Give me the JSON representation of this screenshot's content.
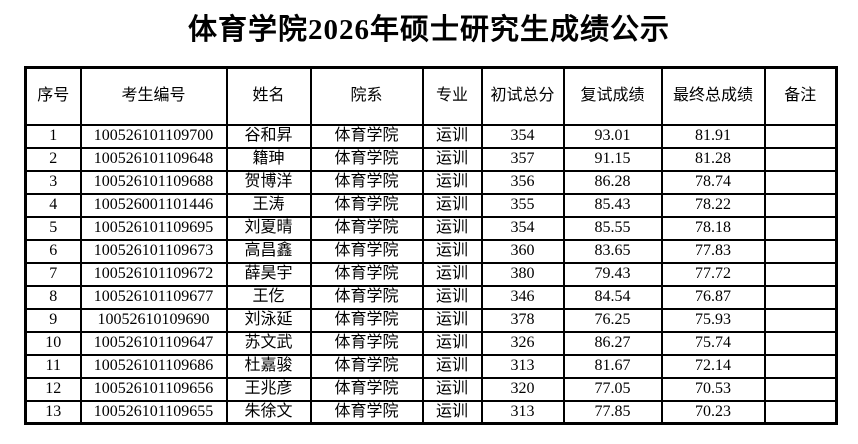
{
  "page": {
    "title": "体育学院2026年硕士研究生成绩公示"
  },
  "table": {
    "columns": [
      {
        "key": "index",
        "label": "序号"
      },
      {
        "key": "candidate-id",
        "label": "考生编号"
      },
      {
        "key": "name",
        "label": "姓名"
      },
      {
        "key": "department",
        "label": "院系"
      },
      {
        "key": "major",
        "label": "专业"
      },
      {
        "key": "initial-score",
        "label": "初试总分"
      },
      {
        "key": "retest-score",
        "label": "复试成绩"
      },
      {
        "key": "final-score",
        "label": "最终总成绩"
      },
      {
        "key": "remark",
        "label": "备注"
      }
    ],
    "rows": [
      [
        "1",
        "100526101109700",
        "谷和昇",
        "体育学院",
        "运训",
        "354",
        "93.01",
        "81.91",
        ""
      ],
      [
        "2",
        "100526101109648",
        "籍珅",
        "体育学院",
        "运训",
        "357",
        "91.15",
        "81.28",
        ""
      ],
      [
        "3",
        "100526101109688",
        "贺博洋",
        "体育学院",
        "运训",
        "356",
        "86.28",
        "78.74",
        ""
      ],
      [
        "4",
        "100526001101446",
        "王涛",
        "体育学院",
        "运训",
        "355",
        "85.43",
        "78.22",
        ""
      ],
      [
        "5",
        "100526101109695",
        "刘夏晴",
        "体育学院",
        "运训",
        "354",
        "85.55",
        "78.18",
        ""
      ],
      [
        "6",
        "100526101109673",
        "高昌鑫",
        "体育学院",
        "运训",
        "360",
        "83.65",
        "77.83",
        ""
      ],
      [
        "7",
        "100526101109672",
        "薛昊宇",
        "体育学院",
        "运训",
        "380",
        "79.43",
        "77.72",
        ""
      ],
      [
        "8",
        "100526101109677",
        "王仡",
        "体育学院",
        "运训",
        "346",
        "84.54",
        "76.87",
        ""
      ],
      [
        "9",
        "10052610109690",
        "刘泳延",
        "体育学院",
        "运训",
        "378",
        "76.25",
        "75.93",
        ""
      ],
      [
        "10",
        "100526101109647",
        "苏文武",
        "体育学院",
        "运训",
        "326",
        "86.27",
        "75.74",
        ""
      ],
      [
        "11",
        "100526101109686",
        "杜嘉骏",
        "体育学院",
        "运训",
        "313",
        "81.67",
        "72.14",
        ""
      ],
      [
        "12",
        "100526101109656",
        "王兆彦",
        "体育学院",
        "运训",
        "320",
        "77.05",
        "70.53",
        ""
      ],
      [
        "13",
        "100526101109655",
        "朱徐文",
        "体育学院",
        "运训",
        "313",
        "77.85",
        "70.23",
        ""
      ]
    ]
  }
}
